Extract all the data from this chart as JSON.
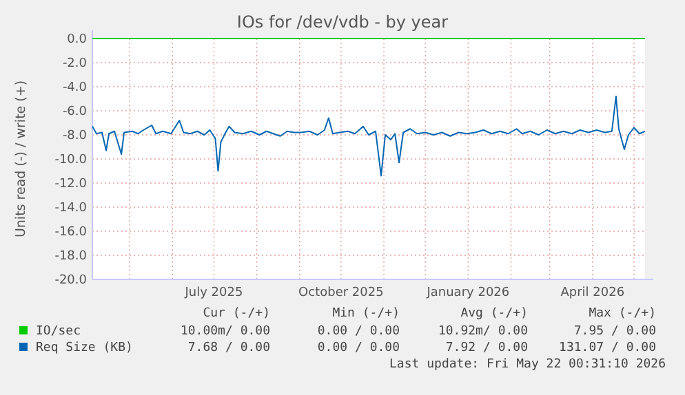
{
  "chart_data": {
    "type": "line",
    "title": "IOs for /dev/vdb - by year",
    "ylabel": "Units read (-) / write (+)",
    "x": [
      "2025-04-04",
      "2025-04-07",
      "2025-04-11",
      "2025-04-14",
      "2025-04-16",
      "2025-04-20",
      "2025-04-25",
      "2025-04-27",
      "2025-05-03",
      "2025-05-07",
      "2025-05-11",
      "2025-05-17",
      "2025-05-20",
      "2025-05-25",
      "2025-05-31",
      "2025-06-06",
      "2025-06-09",
      "2025-06-14",
      "2025-06-19",
      "2025-06-24",
      "2025-06-28",
      "2025-07-02",
      "2025-07-04",
      "2025-07-06",
      "2025-07-09",
      "2025-07-12",
      "2025-07-16",
      "2025-07-22",
      "2025-07-28",
      "2025-08-03",
      "2025-08-08",
      "2025-08-13",
      "2025-08-18",
      "2025-08-23",
      "2025-08-28",
      "2025-09-02",
      "2025-09-08",
      "2025-09-14",
      "2025-09-19",
      "2025-09-22",
      "2025-09-25",
      "2025-09-30",
      "2025-10-06",
      "2025-10-11",
      "2025-10-17",
      "2025-10-21",
      "2025-10-26",
      "2025-10-30",
      "2025-11-02",
      "2025-11-06",
      "2025-11-09",
      "2025-11-12",
      "2025-11-15",
      "2025-11-20",
      "2025-11-25",
      "2025-12-01",
      "2025-12-07",
      "2025-12-13",
      "2025-12-19",
      "2025-12-25",
      "2025-12-31",
      "2026-01-06",
      "2026-01-12",
      "2026-01-18",
      "2026-01-24",
      "2026-01-30",
      "2026-02-05",
      "2026-02-09",
      "2026-02-15",
      "2026-02-21",
      "2026-02-27",
      "2026-03-05",
      "2026-03-11",
      "2026-03-17",
      "2026-03-23",
      "2026-03-29",
      "2026-04-04",
      "2026-04-10",
      "2026-04-15",
      "2026-04-18",
      "2026-04-20",
      "2026-04-24",
      "2026-04-27",
      "2026-05-01",
      "2026-05-05",
      "2026-05-09"
    ],
    "series": [
      {
        "name": "IO/sec",
        "color": "#00cc00",
        "x": [
          "2025-04-04",
          "2026-05-09"
        ],
        "values": [
          0,
          0
        ]
      },
      {
        "name": "Req Size (KB)",
        "color": "#0066b3",
        "values": [
          -7.3,
          -7.9,
          -7.8,
          -9.3,
          -7.9,
          -7.7,
          -9.6,
          -7.8,
          -7.7,
          -7.9,
          -7.6,
          -7.2,
          -7.9,
          -7.7,
          -7.9,
          -6.8,
          -7.8,
          -7.9,
          -7.7,
          -8.0,
          -7.6,
          -8.3,
          -11.0,
          -8.6,
          -7.9,
          -7.3,
          -7.8,
          -7.9,
          -7.7,
          -8.0,
          -7.7,
          -7.9,
          -8.1,
          -7.7,
          -7.8,
          -7.8,
          -7.7,
          -8.0,
          -7.6,
          -6.6,
          -7.9,
          -7.8,
          -7.7,
          -7.9,
          -7.3,
          -8.0,
          -7.7,
          -11.4,
          -8.0,
          -8.4,
          -7.9,
          -10.3,
          -7.8,
          -7.5,
          -7.9,
          -7.8,
          -8.0,
          -7.8,
          -8.1,
          -7.8,
          -7.9,
          -7.8,
          -7.6,
          -7.9,
          -7.7,
          -7.9,
          -7.5,
          -7.9,
          -7.7,
          -8.0,
          -7.6,
          -7.9,
          -7.7,
          -7.9,
          -7.6,
          -7.8,
          -7.6,
          -7.8,
          -7.7,
          -4.8,
          -7.5,
          -9.2,
          -8.0,
          -7.4,
          -7.9,
          -7.7
        ]
      }
    ],
    "xlim": [
      "2025-04-04",
      "2026-05-09"
    ],
    "xticks": [
      {
        "value": "2025-05-01",
        "label": null
      },
      {
        "value": "2025-06-01",
        "label": null
      },
      {
        "value": "2025-07-01",
        "label": "July 2025"
      },
      {
        "value": "2025-08-01",
        "label": null
      },
      {
        "value": "2025-09-01",
        "label": null
      },
      {
        "value": "2025-10-01",
        "label": "October 2025"
      },
      {
        "value": "2025-11-01",
        "label": null
      },
      {
        "value": "2025-12-01",
        "label": null
      },
      {
        "value": "2026-01-01",
        "label": "January 2026"
      },
      {
        "value": "2026-02-01",
        "label": null
      },
      {
        "value": "2026-03-01",
        "label": null
      },
      {
        "value": "2026-04-01",
        "label": "April 2026"
      },
      {
        "value": "2026-05-01",
        "label": null
      }
    ],
    "ylim": [
      -20,
      0
    ],
    "yticks": [
      {
        "value": 0,
        "label": "0.0"
      },
      {
        "value": -2,
        "label": "-2.0"
      },
      {
        "value": -4,
        "label": "-4.0"
      },
      {
        "value": -6,
        "label": "-6.0"
      },
      {
        "value": -8,
        "label": "-8.0"
      },
      {
        "value": -10,
        "label": "-10.0"
      },
      {
        "value": -12,
        "label": "-12.0"
      },
      {
        "value": -14,
        "label": "-14.0"
      },
      {
        "value": -16,
        "label": "-16.0"
      },
      {
        "value": -18,
        "label": "-18.0"
      },
      {
        "value": -20,
        "label": "-20.0"
      }
    ],
    "grid": true,
    "legend": "bottom",
    "line_style": "solid",
    "marker": "none",
    "annotations": [
      "Cur (-/+)",
      "Min (-/+)",
      "Avg (-/+)",
      "Max (-/+)",
      "10.00m/ 0.00",
      "0.00 / 0.00",
      "10.92m/ 0.00",
      "7.95 / 0.00",
      "7.68 / 0.00",
      "0.00 / 0.00",
      "7.92 / 0.00",
      "131.07 / 0.00",
      "Last update: Fri May 22 00:31:10 2026"
    ]
  }
}
